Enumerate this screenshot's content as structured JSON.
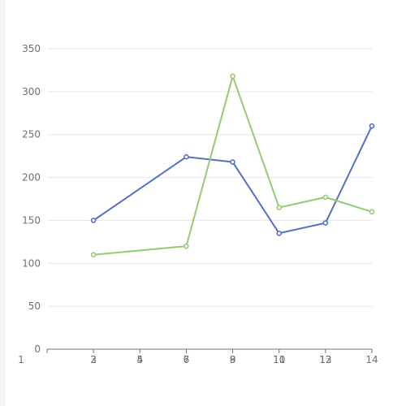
{
  "chart_data": {
    "type": "line",
    "title": "",
    "xlabel": "",
    "ylabel": "",
    "x_ticks_layer1": [
      "1",
      "3",
      "5",
      "7",
      "9",
      "11",
      "13"
    ],
    "x_ticks_layer2": [
      "2",
      "4",
      "6",
      "8",
      "10",
      "12",
      "14"
    ],
    "y_ticks": [
      "0",
      "50",
      "100",
      "150",
      "200",
      "250",
      "300",
      "350"
    ],
    "ylim": [
      0,
      350
    ],
    "xlim": [
      0,
      14
    ],
    "grid": true,
    "series": [
      {
        "color": "#5470c6",
        "points": [
          [
            2,
            150
          ],
          [
            6,
            224
          ],
          [
            8,
            218
          ],
          [
            10,
            135
          ],
          [
            12,
            147
          ],
          [
            14,
            260
          ]
        ]
      },
      {
        "color": "#91cc75",
        "points": [
          [
            2,
            110
          ],
          [
            6,
            120
          ],
          [
            8,
            318
          ],
          [
            10,
            165
          ],
          [
            12,
            177
          ],
          [
            14,
            160
          ]
        ]
      }
    ]
  }
}
